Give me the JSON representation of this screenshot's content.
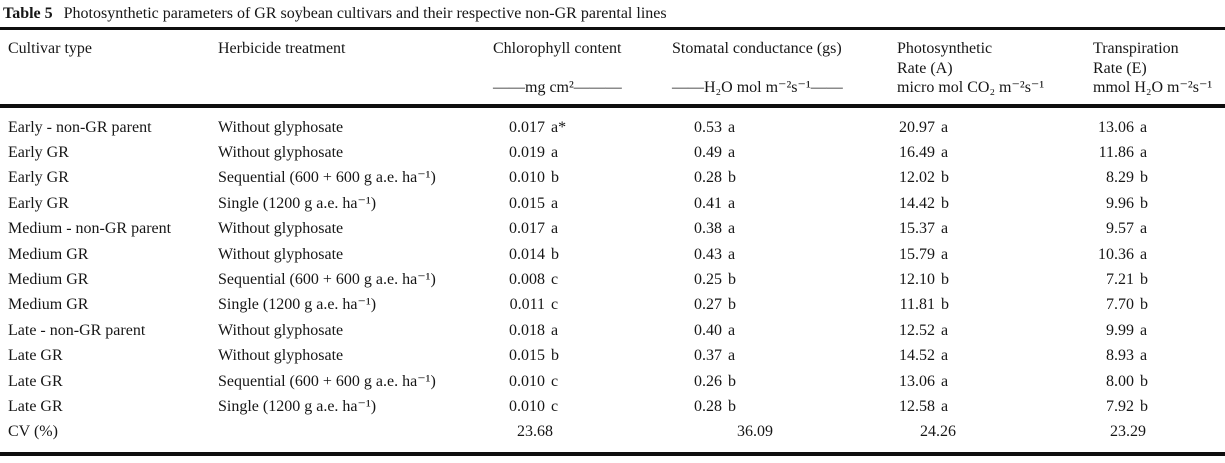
{
  "table": {
    "label": "Table 5",
    "caption": "Photosynthetic parameters of GR soybean cultivars and their respective non-GR parental lines",
    "header": {
      "cultivar": "Cultivar type",
      "herbicide": "Herbicide treatment",
      "chlorophyll": {
        "title": "Chlorophyll content",
        "unit": "——mg cm²———"
      },
      "stomatal": {
        "title": "Stomatal conductance (gs)",
        "unit": "——H₂O mol m⁻²s⁻¹——"
      },
      "photosynthetic": {
        "title": "Photosynthetic",
        "title2": "Rate (A)",
        "unit": "micro mol CO₂ m⁻²s⁻¹"
      },
      "transpiration": {
        "title": "Transpiration",
        "title2": "Rate (E)",
        "unit": "mmol H₂O m⁻²s⁻¹"
      }
    },
    "rows": [
      {
        "cultivar": "Early - non-GR parent",
        "herbicide": "Without glyphosate",
        "chlorophyll": "0.017 a*",
        "stomatal": "0.53 a",
        "photosynthetic": "20.97 a",
        "transpiration": "13.06 a"
      },
      {
        "cultivar": "Early GR",
        "herbicide": "Without glyphosate",
        "chlorophyll": "0.019 a",
        "stomatal": "0.49 a",
        "photosynthetic": "16.49 a",
        "transpiration": "11.86 a"
      },
      {
        "cultivar": "Early GR",
        "herbicide": "Sequential (600 + 600 g a.e. ha⁻¹)",
        "chlorophyll": "0.010 b",
        "stomatal": "0.28 b",
        "photosynthetic": "12.02 b",
        "transpiration": "8.29 b"
      },
      {
        "cultivar": "Early GR",
        "herbicide": "Single (1200 g a.e. ha⁻¹)",
        "chlorophyll": "0.015 a",
        "stomatal": "0.41 a",
        "photosynthetic": "14.42 b",
        "transpiration": "9.96 b"
      },
      {
        "cultivar": "Medium - non-GR parent",
        "herbicide": "Without glyphosate",
        "chlorophyll": "0.017 a",
        "stomatal": "0.38 a",
        "photosynthetic": "15.37 a",
        "transpiration": "9.57 a"
      },
      {
        "cultivar": "Medium GR",
        "herbicide": "Without glyphosate",
        "chlorophyll": "0.014 b",
        "stomatal": "0.43 a",
        "photosynthetic": "15.79 a",
        "transpiration": "10.36 a"
      },
      {
        "cultivar": "Medium GR",
        "herbicide": "Sequential (600 + 600 g a.e. ha⁻¹)",
        "chlorophyll": "0.008 c",
        "stomatal": "0.25 b",
        "photosynthetic": "12.10 b",
        "transpiration": "7.21 b"
      },
      {
        "cultivar": "Medium GR",
        "herbicide": "Single (1200 g a.e. ha⁻¹)",
        "chlorophyll": "0.011 c",
        "stomatal": "0.27 b",
        "photosynthetic": "11.81 b",
        "transpiration": "7.70 b"
      },
      {
        "cultivar": "Late - non-GR parent",
        "herbicide": "Without glyphosate",
        "chlorophyll": "0.018 a",
        "stomatal": "0.40 a",
        "photosynthetic": "12.52 a",
        "transpiration": "9.99 a"
      },
      {
        "cultivar": "Late GR",
        "herbicide": "Without glyphosate",
        "chlorophyll": "0.015 b",
        "stomatal": "0.37 a",
        "photosynthetic": "14.52 a",
        "transpiration": "8.93 a"
      },
      {
        "cultivar": "Late GR",
        "herbicide": "Sequential (600 + 600 g a.e. ha⁻¹)",
        "chlorophyll": "0.010 c",
        "stomatal": "0.26 b",
        "photosynthetic": "13.06 a",
        "transpiration": "8.00 b"
      },
      {
        "cultivar": "Late GR",
        "herbicide": "Single (1200 g a.e. ha⁻¹)",
        "chlorophyll": "0.010 c",
        "stomatal": "0.28 b",
        "photosynthetic": "12.58 a",
        "transpiration": "7.92 b"
      }
    ],
    "cv": {
      "label": "CV (%)",
      "chlorophyll": "23.68",
      "stomatal": "36.09",
      "photosynthetic": "24.26",
      "transpiration": "23.29"
    }
  }
}
